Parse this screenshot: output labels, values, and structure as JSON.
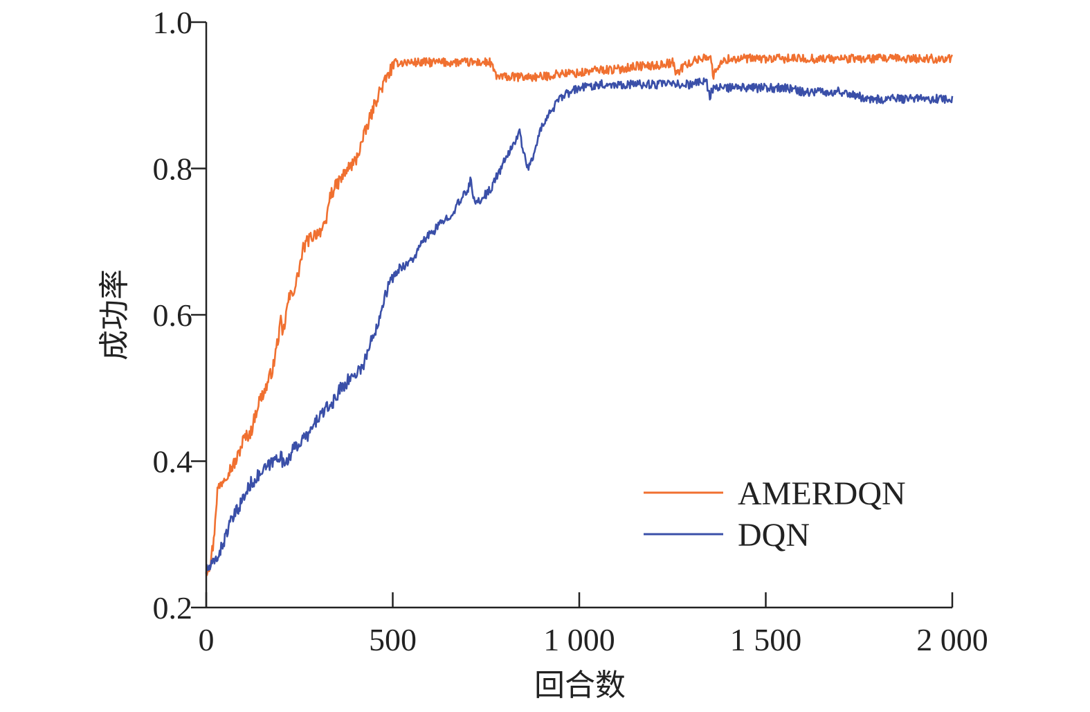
{
  "chart_data": {
    "type": "line",
    "title": "",
    "xlabel": "回合数",
    "ylabel": "成功率",
    "xlim": [
      0,
      2000
    ],
    "ylim": [
      0.2,
      1.0
    ],
    "xticks": [
      0,
      500,
      1000,
      1500,
      2000
    ],
    "xtick_labels": [
      "0",
      "500",
      "1 000",
      "1 500",
      "2 000"
    ],
    "yticks": [
      0.2,
      0.4,
      0.6,
      0.8,
      1.0
    ],
    "ytick_labels": [
      "0.2",
      "0.4",
      "0.6",
      "0.8",
      "1.0"
    ],
    "grid": false,
    "legend_position": "bottom-right",
    "series": [
      {
        "name": "AMERDQN",
        "color": "#f07030",
        "x": [
          0,
          10,
          20,
          25,
          30,
          50,
          80,
          100,
          120,
          140,
          160,
          180,
          200,
          205,
          220,
          240,
          260,
          270,
          290,
          320,
          330,
          340,
          380,
          400,
          420,
          440,
          460,
          480,
          500,
          510,
          520,
          560,
          600,
          650,
          700,
          760,
          780,
          800,
          850,
          900,
          950,
          1000,
          1050,
          1100,
          1150,
          1200,
          1250,
          1260,
          1280,
          1300,
          1350,
          1360,
          1370,
          1400,
          1450,
          1500,
          1550,
          1600,
          1650,
          1700,
          1750,
          1800,
          1850,
          1900,
          1950,
          2000
        ],
        "y": [
          0.25,
          0.26,
          0.29,
          0.33,
          0.36,
          0.38,
          0.4,
          0.43,
          0.44,
          0.48,
          0.5,
          0.53,
          0.59,
          0.57,
          0.62,
          0.64,
          0.69,
          0.7,
          0.71,
          0.72,
          0.76,
          0.77,
          0.8,
          0.81,
          0.84,
          0.87,
          0.9,
          0.92,
          0.94,
          0.945,
          0.945,
          0.945,
          0.945,
          0.945,
          0.945,
          0.945,
          0.925,
          0.925,
          0.925,
          0.925,
          0.93,
          0.93,
          0.935,
          0.935,
          0.94,
          0.94,
          0.945,
          0.93,
          0.94,
          0.945,
          0.955,
          0.925,
          0.94,
          0.95,
          0.95,
          0.95,
          0.95,
          0.95,
          0.95,
          0.95,
          0.95,
          0.95,
          0.95,
          0.95,
          0.95,
          0.95
        ]
      },
      {
        "name": "DQN",
        "color": "#3a4fa8",
        "x": [
          0,
          20,
          40,
          60,
          80,
          100,
          120,
          140,
          160,
          180,
          200,
          205,
          220,
          240,
          260,
          280,
          300,
          320,
          340,
          360,
          380,
          400,
          420,
          440,
          460,
          480,
          500,
          520,
          540,
          560,
          580,
          600,
          620,
          640,
          660,
          680,
          700,
          710,
          720,
          740,
          760,
          780,
          800,
          820,
          840,
          860,
          880,
          890,
          900,
          920,
          940,
          960,
          980,
          1000,
          1050,
          1100,
          1150,
          1200,
          1250,
          1300,
          1340,
          1350,
          1360,
          1400,
          1450,
          1500,
          1550,
          1600,
          1650,
          1700,
          1750,
          1760,
          1800,
          1850,
          1900,
          1950,
          2000
        ],
        "y": [
          0.25,
          0.26,
          0.28,
          0.31,
          0.33,
          0.35,
          0.37,
          0.38,
          0.39,
          0.4,
          0.41,
          0.395,
          0.405,
          0.42,
          0.43,
          0.44,
          0.46,
          0.47,
          0.48,
          0.5,
          0.51,
          0.52,
          0.53,
          0.56,
          0.59,
          0.63,
          0.65,
          0.665,
          0.67,
          0.68,
          0.7,
          0.71,
          0.72,
          0.73,
          0.74,
          0.755,
          0.77,
          0.785,
          0.75,
          0.76,
          0.77,
          0.79,
          0.81,
          0.83,
          0.85,
          0.8,
          0.82,
          0.84,
          0.86,
          0.875,
          0.89,
          0.9,
          0.905,
          0.91,
          0.915,
          0.915,
          0.915,
          0.915,
          0.915,
          0.915,
          0.92,
          0.9,
          0.91,
          0.91,
          0.91,
          0.91,
          0.91,
          0.905,
          0.905,
          0.905,
          0.9,
          0.895,
          0.895,
          0.895,
          0.895,
          0.895,
          0.895
        ]
      }
    ]
  }
}
